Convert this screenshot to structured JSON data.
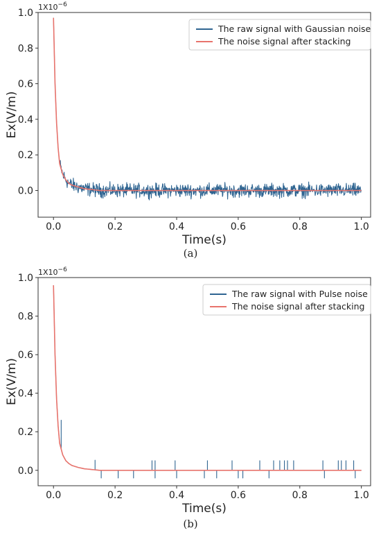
{
  "colors": {
    "raw": "#2e6491",
    "stacked": "#e8736c",
    "axis": "#333333"
  },
  "chart_data": [
    {
      "type": "line",
      "caption": "(a)",
      "exponent_label": "1X10",
      "exponent_power": "−6",
      "xlabel": "Time(s)",
      "ylabel": "Ex(V/m)",
      "xlim": [
        -0.05,
        1.03
      ],
      "ylim": [
        -0.15,
        1.0
      ],
      "xticks": [
        "0.0",
        "0.2",
        "0.4",
        "0.6",
        "0.8",
        "1.0"
      ],
      "xtick_values": [
        0.0,
        0.2,
        0.4,
        0.6,
        0.8,
        1.0
      ],
      "yticks": [
        "0.0",
        "0.2",
        "0.4",
        "0.6",
        "0.8",
        "1.0"
      ],
      "ytick_values": [
        0.0,
        0.2,
        0.4,
        0.6,
        0.8,
        1.0
      ],
      "legend_position": "top-right",
      "series": [
        {
          "name": "The raw signal with Gaussian noise",
          "x": [
            0.0,
            0.005,
            0.01,
            0.015,
            0.02,
            0.03,
            0.04,
            0.05,
            0.06,
            0.08,
            0.1,
            0.15,
            0.2,
            0.3,
            0.4,
            0.5,
            0.6,
            0.7,
            0.8,
            0.9,
            1.0
          ],
          "y": [
            0.97,
            0.6,
            0.38,
            0.24,
            0.15,
            0.09,
            0.06,
            0.04,
            0.03,
            0.02,
            0.01,
            0.0,
            0.0,
            0.0,
            0.0,
            0.0,
            0.0,
            0.0,
            0.0,
            0.0,
            0.0
          ],
          "noise": "gaussian",
          "noise_amplitude": 0.04
        },
        {
          "name": "The noise signal after stacking",
          "x": [
            0.0,
            0.005,
            0.01,
            0.015,
            0.02,
            0.03,
            0.04,
            0.05,
            0.06,
            0.08,
            0.1,
            0.15,
            0.2,
            0.3,
            0.4,
            0.5,
            0.6,
            0.7,
            0.8,
            0.9,
            1.0
          ],
          "y": [
            0.97,
            0.6,
            0.38,
            0.24,
            0.15,
            0.09,
            0.06,
            0.04,
            0.03,
            0.02,
            0.01,
            0.0,
            0.0,
            0.0,
            0.0,
            0.0,
            0.0,
            0.0,
            0.0,
            0.0,
            0.0
          ]
        }
      ]
    },
    {
      "type": "line",
      "caption": "(b)",
      "exponent_label": "1X10",
      "exponent_power": "−6",
      "xlabel": "Time(s)",
      "ylabel": "Ex(V/m)",
      "xlim": [
        -0.05,
        1.03
      ],
      "ylim": [
        -0.08,
        1.0
      ],
      "xticks": [
        "0.0",
        "0.2",
        "0.4",
        "0.6",
        "0.8",
        "1.0"
      ],
      "xtick_values": [
        0.0,
        0.2,
        0.4,
        0.6,
        0.8,
        1.0
      ],
      "yticks": [
        "0.0",
        "0.2",
        "0.4",
        "0.6",
        "0.8",
        "1.0"
      ],
      "ytick_values": [
        0.0,
        0.2,
        0.4,
        0.6,
        0.8,
        1.0
      ],
      "legend_position": "top-right",
      "series": [
        {
          "name": "The raw signal with Pulse noise",
          "x": [
            0.0,
            0.005,
            0.01,
            0.015,
            0.02,
            0.03,
            0.04,
            0.05,
            0.06,
            0.08,
            0.1,
            0.15,
            0.2,
            0.3,
            0.4,
            0.5,
            0.6,
            0.7,
            0.8,
            0.9,
            1.0
          ],
          "y": [
            0.96,
            0.6,
            0.37,
            0.23,
            0.14,
            0.08,
            0.05,
            0.035,
            0.025,
            0.015,
            0.008,
            0.0,
            0.0,
            0.0,
            0.0,
            0.0,
            0.0,
            0.0,
            0.0,
            0.0,
            0.0
          ],
          "pulses": [
            {
              "t": 0.025,
              "v": 0.15
            },
            {
              "t": 0.135,
              "v": 0.05
            },
            {
              "t": 0.155,
              "v": -0.04
            },
            {
              "t": 0.21,
              "v": -0.04
            },
            {
              "t": 0.26,
              "v": -0.04
            },
            {
              "t": 0.32,
              "v": 0.05
            },
            {
              "t": 0.33,
              "v": 0.05
            },
            {
              "t": 0.33,
              "v": -0.04
            },
            {
              "t": 0.395,
              "v": 0.05
            },
            {
              "t": 0.4,
              "v": -0.04
            },
            {
              "t": 0.49,
              "v": -0.04
            },
            {
              "t": 0.5,
              "v": 0.05
            },
            {
              "t": 0.53,
              "v": -0.04
            },
            {
              "t": 0.58,
              "v": 0.05
            },
            {
              "t": 0.6,
              "v": -0.04
            },
            {
              "t": 0.615,
              "v": -0.04
            },
            {
              "t": 0.67,
              "v": 0.05
            },
            {
              "t": 0.7,
              "v": -0.04
            },
            {
              "t": 0.715,
              "v": 0.05
            },
            {
              "t": 0.735,
              "v": 0.05
            },
            {
              "t": 0.75,
              "v": 0.05
            },
            {
              "t": 0.76,
              "v": 0.05
            },
            {
              "t": 0.78,
              "v": 0.05
            },
            {
              "t": 0.875,
              "v": 0.05
            },
            {
              "t": 0.88,
              "v": -0.04
            },
            {
              "t": 0.925,
              "v": 0.05
            },
            {
              "t": 0.935,
              "v": 0.05
            },
            {
              "t": 0.95,
              "v": 0.05
            },
            {
              "t": 0.975,
              "v": 0.05
            },
            {
              "t": 0.98,
              "v": -0.04
            }
          ]
        },
        {
          "name": "The noise signal after stacking",
          "x": [
            0.0,
            0.005,
            0.01,
            0.015,
            0.02,
            0.03,
            0.04,
            0.05,
            0.06,
            0.08,
            0.1,
            0.15,
            0.2,
            0.3,
            0.4,
            0.5,
            0.6,
            0.7,
            0.8,
            0.9,
            1.0
          ],
          "y": [
            0.96,
            0.6,
            0.37,
            0.23,
            0.14,
            0.08,
            0.05,
            0.035,
            0.025,
            0.015,
            0.008,
            0.0,
            0.0,
            0.0,
            0.0,
            0.0,
            0.0,
            0.0,
            0.0,
            0.0,
            0.0
          ]
        }
      ]
    }
  ]
}
